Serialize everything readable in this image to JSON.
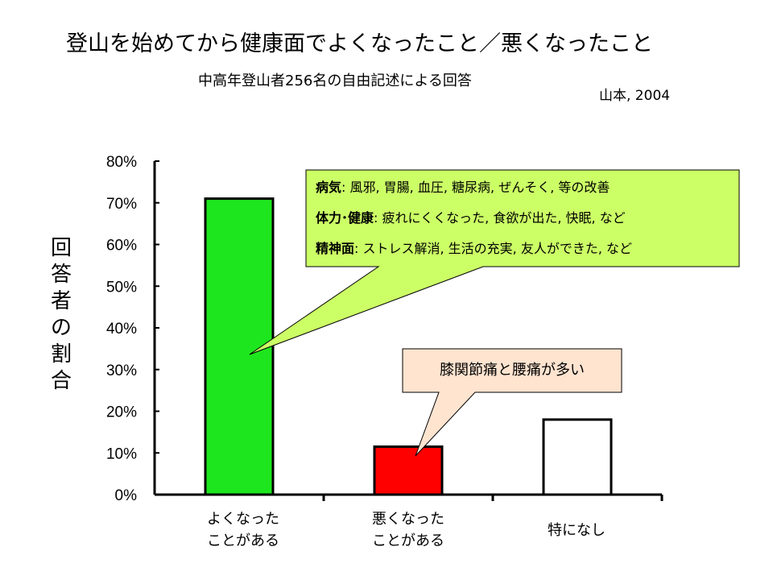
{
  "title": "登山を始めてから健康面でよくなったこと／悪くなったこと",
  "subtitle": "中高年登山者256名の自由記述による回答",
  "citation": "山本, 2004",
  "colors": {
    "better": "#1ee61e",
    "worse": "#ff0000",
    "none": "#ffffff",
    "callout1_fill": "#ccff66",
    "callout2_fill": "#ffe4d0"
  },
  "callouts": {
    "better": {
      "rows": [
        {
          "label": "病気",
          "sep": ": ",
          "text": "風邪, 胃腸, 血圧, 糖尿病, ぜんそく, 等の改善"
        },
        {
          "label": "体力･健康",
          "sep": ": ",
          "text": "疲れにくくなった, 食欲が出た, 快眠, など"
        },
        {
          "label": "精神面",
          "sep": ": ",
          "text": "ストレス解消, 生活の充実, 友人ができた, など"
        }
      ]
    },
    "worse": {
      "text": "膝関節痛と腰痛が多い"
    }
  },
  "chart_data": {
    "type": "bar",
    "title": "登山を始めてから健康面でよくなったこと／悪くなったこと",
    "subtitle": "中高年登山者256名の自由記述による回答",
    "categories": [
      "よくなった\nことがある",
      "悪くなった\nことがある",
      "特になし"
    ],
    "values": [
      71,
      11.5,
      18
    ],
    "ylabel": "回答者の割合",
    "xlabel": "",
    "yticks": [
      "0%",
      "10%",
      "20%",
      "30%",
      "40%",
      "50%",
      "60%",
      "70%",
      "80%"
    ],
    "ylim": [
      0,
      80
    ],
    "unit": "%",
    "grid": false
  }
}
